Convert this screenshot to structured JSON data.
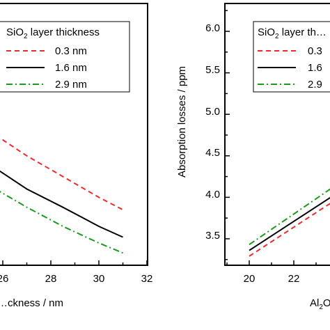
{
  "chart_data": [
    {
      "type": "line",
      "xlabel": "…ckness / nm",
      "xticks": [
        "26",
        "28",
        "30",
        "32"
      ],
      "xlim": [
        25.7,
        32
      ],
      "ylim": [
        3.3,
        6.3
      ],
      "legend": {
        "title_main": "SiO",
        "title_sub": "2",
        "title_rest": " layer thickness",
        "placement": "top-right"
      },
      "series": [
        {
          "name": "0.3 nm",
          "color": "#ee2b2b",
          "dash": "dashed",
          "x": [
            25.7,
            27,
            28.5,
            30,
            31
          ],
          "y": [
            4.75,
            4.5,
            4.25,
            4.0,
            3.85
          ]
        },
        {
          "name": "1.6 nm",
          "color": "#000000",
          "dash": "solid",
          "x": [
            25.7,
            27,
            28.5,
            30,
            31
          ],
          "y": [
            4.35,
            4.1,
            3.88,
            3.65,
            3.52
          ]
        },
        {
          "name": "2.9 nm",
          "color": "#1a9a1a",
          "dash": "dashdot",
          "x": [
            25.7,
            27,
            28.5,
            30,
            31
          ],
          "y": [
            4.1,
            3.88,
            3.65,
            3.45,
            3.33
          ]
        }
      ]
    },
    {
      "type": "line",
      "ylabel": "Absorption losses / ppm",
      "xlabel_main": "Al",
      "xlabel_sub": "2",
      "xlabel_rest": "O…",
      "xticks": [
        "20",
        "22"
      ],
      "yticks": [
        "3.5",
        "4.0",
        "4.5",
        "5.0",
        "5.5",
        "6.0"
      ],
      "xlim": [
        19,
        24.4
      ],
      "ylim": [
        3.08,
        6.3
      ],
      "legend": {
        "title_main": "SiO",
        "title_sub": "2",
        "title_rest": " layer th…",
        "labels": [
          "0.3",
          "1.6",
          "2.9"
        ],
        "placement": "top-right"
      },
      "series": [
        {
          "name": "0.3",
          "color": "#ee2b2b",
          "dash": "dashed",
          "x": [
            20,
            24.4
          ],
          "y": [
            3.29,
            4.06
          ]
        },
        {
          "name": "1.6",
          "color": "#000000",
          "dash": "solid",
          "x": [
            20,
            24.4
          ],
          "y": [
            3.36,
            4.13
          ]
        },
        {
          "name": "2.9",
          "color": "#1a9a1a",
          "dash": "dashdot",
          "x": [
            20,
            24.4
          ],
          "y": [
            3.43,
            4.24
          ]
        }
      ]
    }
  ]
}
